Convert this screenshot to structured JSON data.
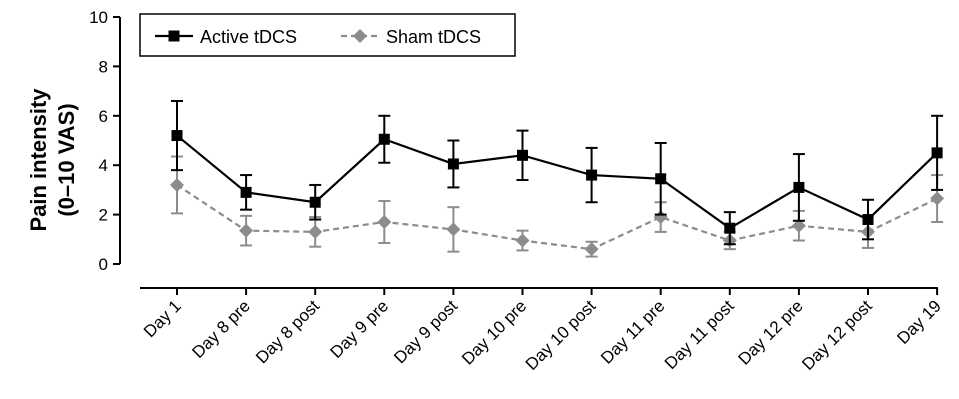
{
  "chart_data": {
    "type": "line",
    "categories": [
      "Day 1",
      "Day 8 pre",
      "Day 8 post",
      "Day 9 pre",
      "Day 9 post",
      "Day 10 pre",
      "Day 10 post",
      "Day 11 pre",
      "Day 11 post",
      "Day 12 pre",
      "Day 12 post",
      "Day 19"
    ],
    "ylabel_line1": "Pain intensity",
    "ylabel_line2": "(0–10 VAS)",
    "ylim": [
      0,
      10
    ],
    "yticks": [
      "0",
      "2",
      "4",
      "6",
      "8",
      "10"
    ],
    "legend_position": "top-left",
    "series": [
      {
        "name": "Active tDCS",
        "color": "#000000",
        "marker": "square",
        "line_style": "solid",
        "values": [
          5.2,
          2.9,
          2.5,
          5.05,
          4.05,
          4.4,
          3.6,
          3.45,
          1.45,
          3.1,
          1.8,
          4.5
        ],
        "errors": [
          1.4,
          0.7,
          0.7,
          0.95,
          0.95,
          1.0,
          1.1,
          1.45,
          0.65,
          1.35,
          0.8,
          1.5
        ]
      },
      {
        "name": "Sham tDCS",
        "color": "#8c8c8c",
        "marker": "diamond",
        "line_style": "dashed",
        "values": [
          3.2,
          1.35,
          1.3,
          1.7,
          1.4,
          0.95,
          0.6,
          1.9,
          0.95,
          1.55,
          1.3,
          2.65
        ],
        "errors": [
          1.15,
          0.6,
          0.6,
          0.85,
          0.9,
          0.4,
          0.3,
          0.6,
          0.35,
          0.6,
          0.65,
          0.95
        ]
      }
    ]
  }
}
